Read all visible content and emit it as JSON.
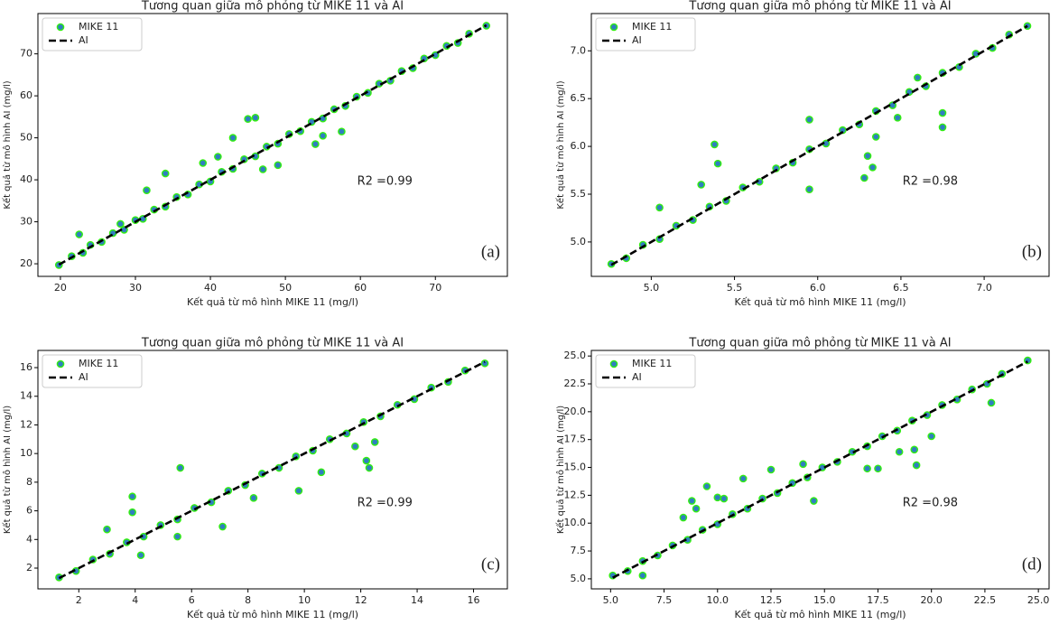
{
  "chart_data": [
    {
      "type": "scatter",
      "title": "Tương quan giữa mô phỏng từ MIKE 11 và AI",
      "xlabel": "Kết quả từ mô hình MIKE 11 (mg/l)",
      "ylabel": "Kết quả từ mô hình AI (mg/l)",
      "annotation": "R2 =0.99",
      "panel_label": "(a)",
      "legend": "upper left",
      "xlim": [
        17,
        79.6
      ],
      "ylim": [
        17,
        79.6
      ],
      "xticks": [
        20,
        30,
        40,
        50,
        60,
        70
      ],
      "yticks": [
        20,
        30,
        40,
        50,
        60,
        70
      ],
      "series": [
        {
          "name": "MIKE 11",
          "type": "scatter",
          "color": "#2f7fbf",
          "edgecolor": "#33ee11",
          "x": [
            19.8,
            21.5,
            23,
            24,
            25.5,
            27,
            28.5,
            30,
            31,
            32.5,
            34,
            35.5,
            37,
            38.5,
            40,
            41.5,
            43,
            44.5,
            46,
            47.5,
            49,
            50.5,
            52,
            53.5,
            55,
            56.5,
            58,
            59.5,
            61,
            62.5,
            64,
            65.5,
            67,
            68.5,
            70,
            71.5,
            73,
            74.5,
            76.8,
            45,
            46,
            43,
            34,
            31.5,
            39,
            57.5,
            55,
            49,
            54,
            22.5,
            41,
            47,
            28
          ],
          "values": [
            19.7,
            21.8,
            22.6,
            24.5,
            25.2,
            27.3,
            28.1,
            30.4,
            30.7,
            32.9,
            33.6,
            35.9,
            36.5,
            38.9,
            39.6,
            41.9,
            42.6,
            44.9,
            45.6,
            47.9,
            48.6,
            50.9,
            51.6,
            53.8,
            54.6,
            56.8,
            57.6,
            59.8,
            60.7,
            62.9,
            63.6,
            65.9,
            66.6,
            68.9,
            69.7,
            71.9,
            72.6,
            74.8,
            76.7,
            54.5,
            54.8,
            50,
            41.5,
            37.5,
            44,
            51.5,
            50.5,
            43.5,
            48.5,
            27,
            45.5,
            42.5,
            29.5
          ]
        },
        {
          "name": "AI",
          "type": "line",
          "color": "#000000",
          "x": [
            19.8,
            76.8
          ],
          "values": [
            19.8,
            76.8
          ]
        }
      ]
    },
    {
      "type": "scatter",
      "title": "Tương quan giữa mô phỏng từ MIKE 11 và AI",
      "xlabel": "Kết quả từ mô hình MIKE 11 (mg/l)",
      "ylabel": "Kết quả từ mô hình AI (mg/l)",
      "annotation": "R2 =0.98",
      "panel_label": "(b)",
      "legend": "upper left",
      "xlim": [
        4.64,
        7.39
      ],
      "ylim": [
        4.64,
        7.39
      ],
      "xticks": [
        {
          "value": 5,
          "label": "5.0"
        },
        5.5,
        {
          "value": 6,
          "label": "6.0"
        },
        6.5,
        {
          "value": 7,
          "label": "7.0"
        }
      ],
      "yticks": [
        {
          "value": 5,
          "label": "5.0"
        },
        5.5,
        {
          "value": 6,
          "label": "6.0"
        },
        6.5,
        {
          "value": 7,
          "label": "7.0"
        }
      ],
      "series": [
        {
          "name": "MIKE 11",
          "type": "scatter",
          "color": "#2f7fbf",
          "edgecolor": "#33ee11",
          "x": [
            4.76,
            4.85,
            4.95,
            5.05,
            5.15,
            5.25,
            5.35,
            5.45,
            5.55,
            5.65,
            5.75,
            5.85,
            5.95,
            6.05,
            6.15,
            6.25,
            6.35,
            6.45,
            6.55,
            6.65,
            6.75,
            6.85,
            6.95,
            7.05,
            7.15,
            7.26,
            5.38,
            5.4,
            5.95,
            5.05,
            5.3,
            6.28,
            6.3,
            6.33,
            6.35,
            6.75,
            6.75,
            6.6,
            5.95,
            6.48
          ],
          "values": [
            4.77,
            4.83,
            4.97,
            5.03,
            5.17,
            5.23,
            5.37,
            5.43,
            5.57,
            5.63,
            5.77,
            5.83,
            5.97,
            6.03,
            6.17,
            6.23,
            6.37,
            6.43,
            6.57,
            6.63,
            6.77,
            6.83,
            6.97,
            7.03,
            7.17,
            7.26,
            6.02,
            5.82,
            6.28,
            5.36,
            5.6,
            5.67,
            5.9,
            5.78,
            6.1,
            6.2,
            6.35,
            6.72,
            5.55,
            6.3
          ]
        },
        {
          "name": "AI",
          "type": "line",
          "color": "#000000",
          "x": [
            4.76,
            7.26
          ],
          "values": [
            4.76,
            7.26
          ]
        }
      ]
    },
    {
      "type": "scatter",
      "title": "Tương quan giữa mô phỏng từ MIKE 11 và AI",
      "xlabel": "Kết quả từ mô hình MIKE 11 (mg/l)",
      "ylabel": "Kết quả từ mô hình AI (mg/l)",
      "annotation": "R2 =0.99",
      "panel_label": "(c)",
      "legend": "upper left",
      "xlim": [
        0.55,
        17.2
      ],
      "ylim": [
        0.55,
        17.2
      ],
      "xticks": [
        2,
        4,
        6,
        8,
        10,
        12,
        14,
        16
      ],
      "yticks": [
        2,
        4,
        6,
        8,
        10,
        12,
        14,
        16
      ],
      "series": [
        {
          "name": "MIKE 11",
          "type": "scatter",
          "color": "#2f7fbf",
          "edgecolor": "#33ee11",
          "x": [
            1.3,
            1.9,
            2.5,
            3.1,
            3.7,
            4.3,
            4.9,
            5.5,
            6.1,
            6.7,
            7.3,
            7.9,
            8.5,
            9.1,
            9.7,
            10.3,
            10.9,
            11.5,
            12.1,
            12.7,
            13.3,
            13.9,
            14.5,
            15.1,
            15.7,
            16.4,
            3.9,
            3.9,
            5.6,
            3.0,
            4.2,
            7.1,
            5.5,
            8.2,
            9.8,
            11.8,
            12.2,
            12.3,
            12.5,
            10.6
          ],
          "values": [
            1.35,
            1.8,
            2.6,
            3.0,
            3.8,
            4.2,
            5.0,
            5.4,
            6.2,
            6.6,
            7.4,
            7.8,
            8.6,
            9.0,
            9.8,
            10.2,
            11.0,
            11.4,
            12.2,
            12.6,
            13.4,
            13.8,
            14.6,
            15.0,
            15.8,
            16.3,
            7.0,
            5.9,
            9.0,
            4.7,
            2.9,
            4.9,
            4.2,
            6.9,
            7.4,
            10.5,
            9.5,
            9.0,
            10.8,
            8.7
          ]
        },
        {
          "name": "AI",
          "type": "line",
          "color": "#000000",
          "x": [
            1.3,
            16.4
          ],
          "values": [
            1.3,
            16.4
          ]
        }
      ]
    },
    {
      "type": "scatter",
      "title": "Tương quan giữa mô phỏng từ MIKE 11 và AI",
      "xlabel": "Kết quả từ mô hình MIKE 11 (mg/l)",
      "ylabel": "Kết quả từ mô hình AI (mg/l)",
      "annotation": "R2 =0.98",
      "panel_label": "(d)",
      "legend": "upper left",
      "xlim": [
        4.1,
        25.5
      ],
      "ylim": [
        4.1,
        25.5
      ],
      "xticks": [
        {
          "value": 5,
          "label": "5.0"
        },
        7.5,
        {
          "value": 10,
          "label": "10.0"
        },
        12.5,
        {
          "value": 15,
          "label": "15.0"
        },
        17.5,
        {
          "value": 20,
          "label": "20.0"
        },
        22.5,
        {
          "value": 25,
          "label": "25.0"
        }
      ],
      "yticks": [
        {
          "value": 5,
          "label": "5.0"
        },
        7.5,
        {
          "value": 10,
          "label": "10.0"
        },
        12.5,
        {
          "value": 15,
          "label": "15.0"
        },
        17.5,
        {
          "value": 20,
          "label": "20.0"
        },
        22.5,
        {
          "value": 25,
          "label": "25.0"
        }
      ],
      "series": [
        {
          "name": "MIKE 11",
          "type": "scatter",
          "color": "#2f7fbf",
          "edgecolor": "#33ee11",
          "x": [
            5.1,
            5.8,
            6.5,
            7.2,
            7.9,
            8.6,
            9.3,
            10,
            10.7,
            11.4,
            12.1,
            12.8,
            13.5,
            14.2,
            14.9,
            15.6,
            16.3,
            17,
            17.7,
            18.4,
            19.1,
            19.8,
            20.5,
            21.2,
            21.9,
            22.6,
            23.3,
            24.5,
            8.8,
            9,
            9.5,
            10,
            10.3,
            11.2,
            12.5,
            14,
            6.5,
            14.5,
            17,
            17.5,
            19.3,
            19.2,
            20,
            22.8,
            18.5,
            8.4
          ],
          "values": [
            5.3,
            5.7,
            6.6,
            7.1,
            8.0,
            8.5,
            9.4,
            9.9,
            10.8,
            11.3,
            12.2,
            12.7,
            13.6,
            14.1,
            15.0,
            15.5,
            16.4,
            16.9,
            17.8,
            18.3,
            19.2,
            19.7,
            20.6,
            21.1,
            22.0,
            22.5,
            23.4,
            24.6,
            12,
            11.3,
            13.3,
            12.3,
            12.2,
            14,
            14.8,
            15.3,
            5.3,
            12,
            14.9,
            14.9,
            15.2,
            16.6,
            17.8,
            20.8,
            16.4,
            10.5
          ]
        },
        {
          "name": "AI",
          "type": "line",
          "color": "#000000",
          "x": [
            5.1,
            24.5
          ],
          "values": [
            5.1,
            24.5
          ]
        }
      ]
    }
  ]
}
